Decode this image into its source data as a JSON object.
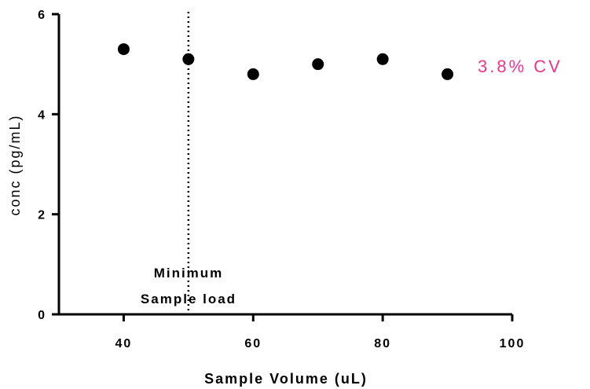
{
  "chart_data": {
    "type": "scatter",
    "xlabel": "Sample Volume (uL)",
    "ylabel": "conc (pg/mL)",
    "xlim": [
      30,
      100
    ],
    "ylim": [
      0,
      6
    ],
    "x_ticks": [
      40,
      60,
      80,
      100
    ],
    "y_ticks": [
      0,
      2,
      4,
      6
    ],
    "x_tick_labels": [
      "40",
      "60",
      "80",
      "100"
    ],
    "y_tick_labels": [
      "0",
      "2",
      "4",
      "6"
    ],
    "series": [
      {
        "x": [
          40,
          50,
          60,
          70,
          80,
          90
        ],
        "y": [
          5.3,
          5.1,
          4.8,
          5.0,
          5.1,
          4.8
        ],
        "color": "#000000"
      }
    ],
    "reference_line": {
      "x": 50,
      "style": "dotted",
      "color": "#000000"
    },
    "annotations": {
      "min_load_line1": "Minimum",
      "min_load_line2": "Sample load",
      "cv_label": "3.8% CV",
      "cv_color": "#e8378f"
    },
    "grid": false
  }
}
